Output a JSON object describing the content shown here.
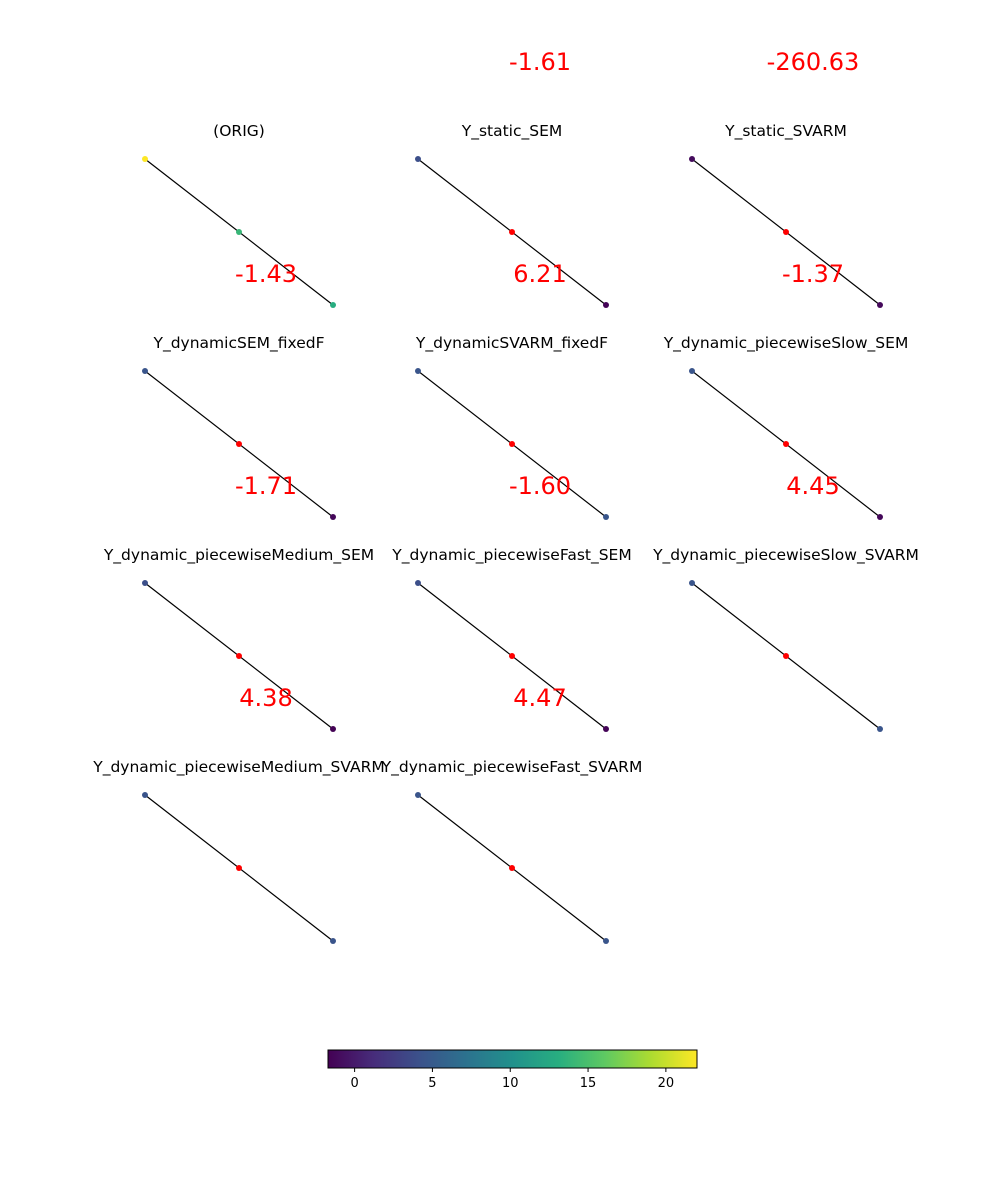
{
  "chart_data": {
    "type": "scatter",
    "colorbar": {
      "colormap": "viridis",
      "range": [
        -1.71,
        22
      ],
      "ticks": [
        0,
        5,
        10,
        15,
        20
      ],
      "tick_labels": [
        "0",
        "5",
        "10",
        "15",
        "20"
      ],
      "orientation": "horizontal",
      "placement": "bottom"
    },
    "panels": [
      {
        "title": "(ORIG)",
        "score": "",
        "nodes": [
          22,
          14,
          13
        ],
        "fixed_mid": false
      },
      {
        "title": "Y_static_SEM",
        "score": "-1.61",
        "nodes": [
          4,
          null,
          -1.5
        ],
        "fixed_mid": true
      },
      {
        "title": "Y_static_SVARM",
        "score": "-260.63",
        "nodes": [
          -1,
          null,
          -1.2
        ],
        "fixed_mid": true
      },
      {
        "title": "Y_dynamicSEM_fixedF",
        "score": "-1.43",
        "nodes": [
          4.5,
          null,
          -1.3
        ],
        "fixed_mid": true
      },
      {
        "title": "Y_dynamicSVARM_fixedF",
        "score": "6.21",
        "nodes": [
          4.5,
          null,
          4.6
        ],
        "fixed_mid": true
      },
      {
        "title": "Y_dynamic_piecewiseSlow_SEM",
        "score": "-1.37",
        "nodes": [
          4.5,
          null,
          -1.3
        ],
        "fixed_mid": true
      },
      {
        "title": "Y_dynamic_piecewiseMedium_SEM",
        "score": "-1.71",
        "nodes": [
          4,
          null,
          -1.6
        ],
        "fixed_mid": true
      },
      {
        "title": "Y_dynamic_piecewiseFast_SEM",
        "score": "-1.60",
        "nodes": [
          4,
          null,
          -1.5
        ],
        "fixed_mid": true
      },
      {
        "title": "Y_dynamic_piecewiseSlow_SVARM",
        "score": "4.45",
        "nodes": [
          4.5,
          null,
          4.5
        ],
        "fixed_mid": true
      },
      {
        "title": "Y_dynamic_piecewiseMedium_SVARM",
        "score": "4.38",
        "nodes": [
          4.4,
          null,
          4.4
        ],
        "fixed_mid": true
      },
      {
        "title": "Y_dynamic_piecewiseFast_SVARM",
        "score": "4.47",
        "nodes": [
          4.5,
          null,
          4.5
        ],
        "fixed_mid": true
      }
    ],
    "colors": {
      "fixed_node": "#ff0000",
      "edge": "#000000",
      "score_text": "#ff0000"
    }
  }
}
